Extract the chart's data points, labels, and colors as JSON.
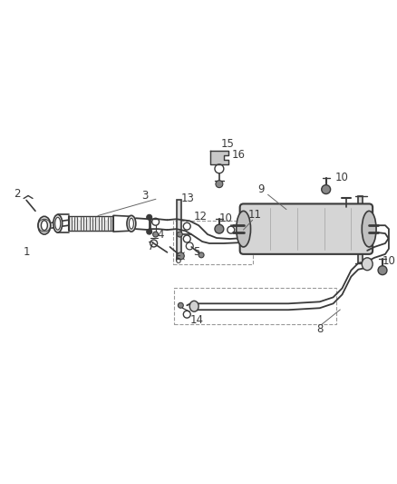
{
  "background_color": "#ffffff",
  "figsize": [
    4.38,
    5.33
  ],
  "dpi": 100,
  "line_color": "#3a3a3a",
  "label_color": "#3a3a3a",
  "label_fontsize": 8.5
}
